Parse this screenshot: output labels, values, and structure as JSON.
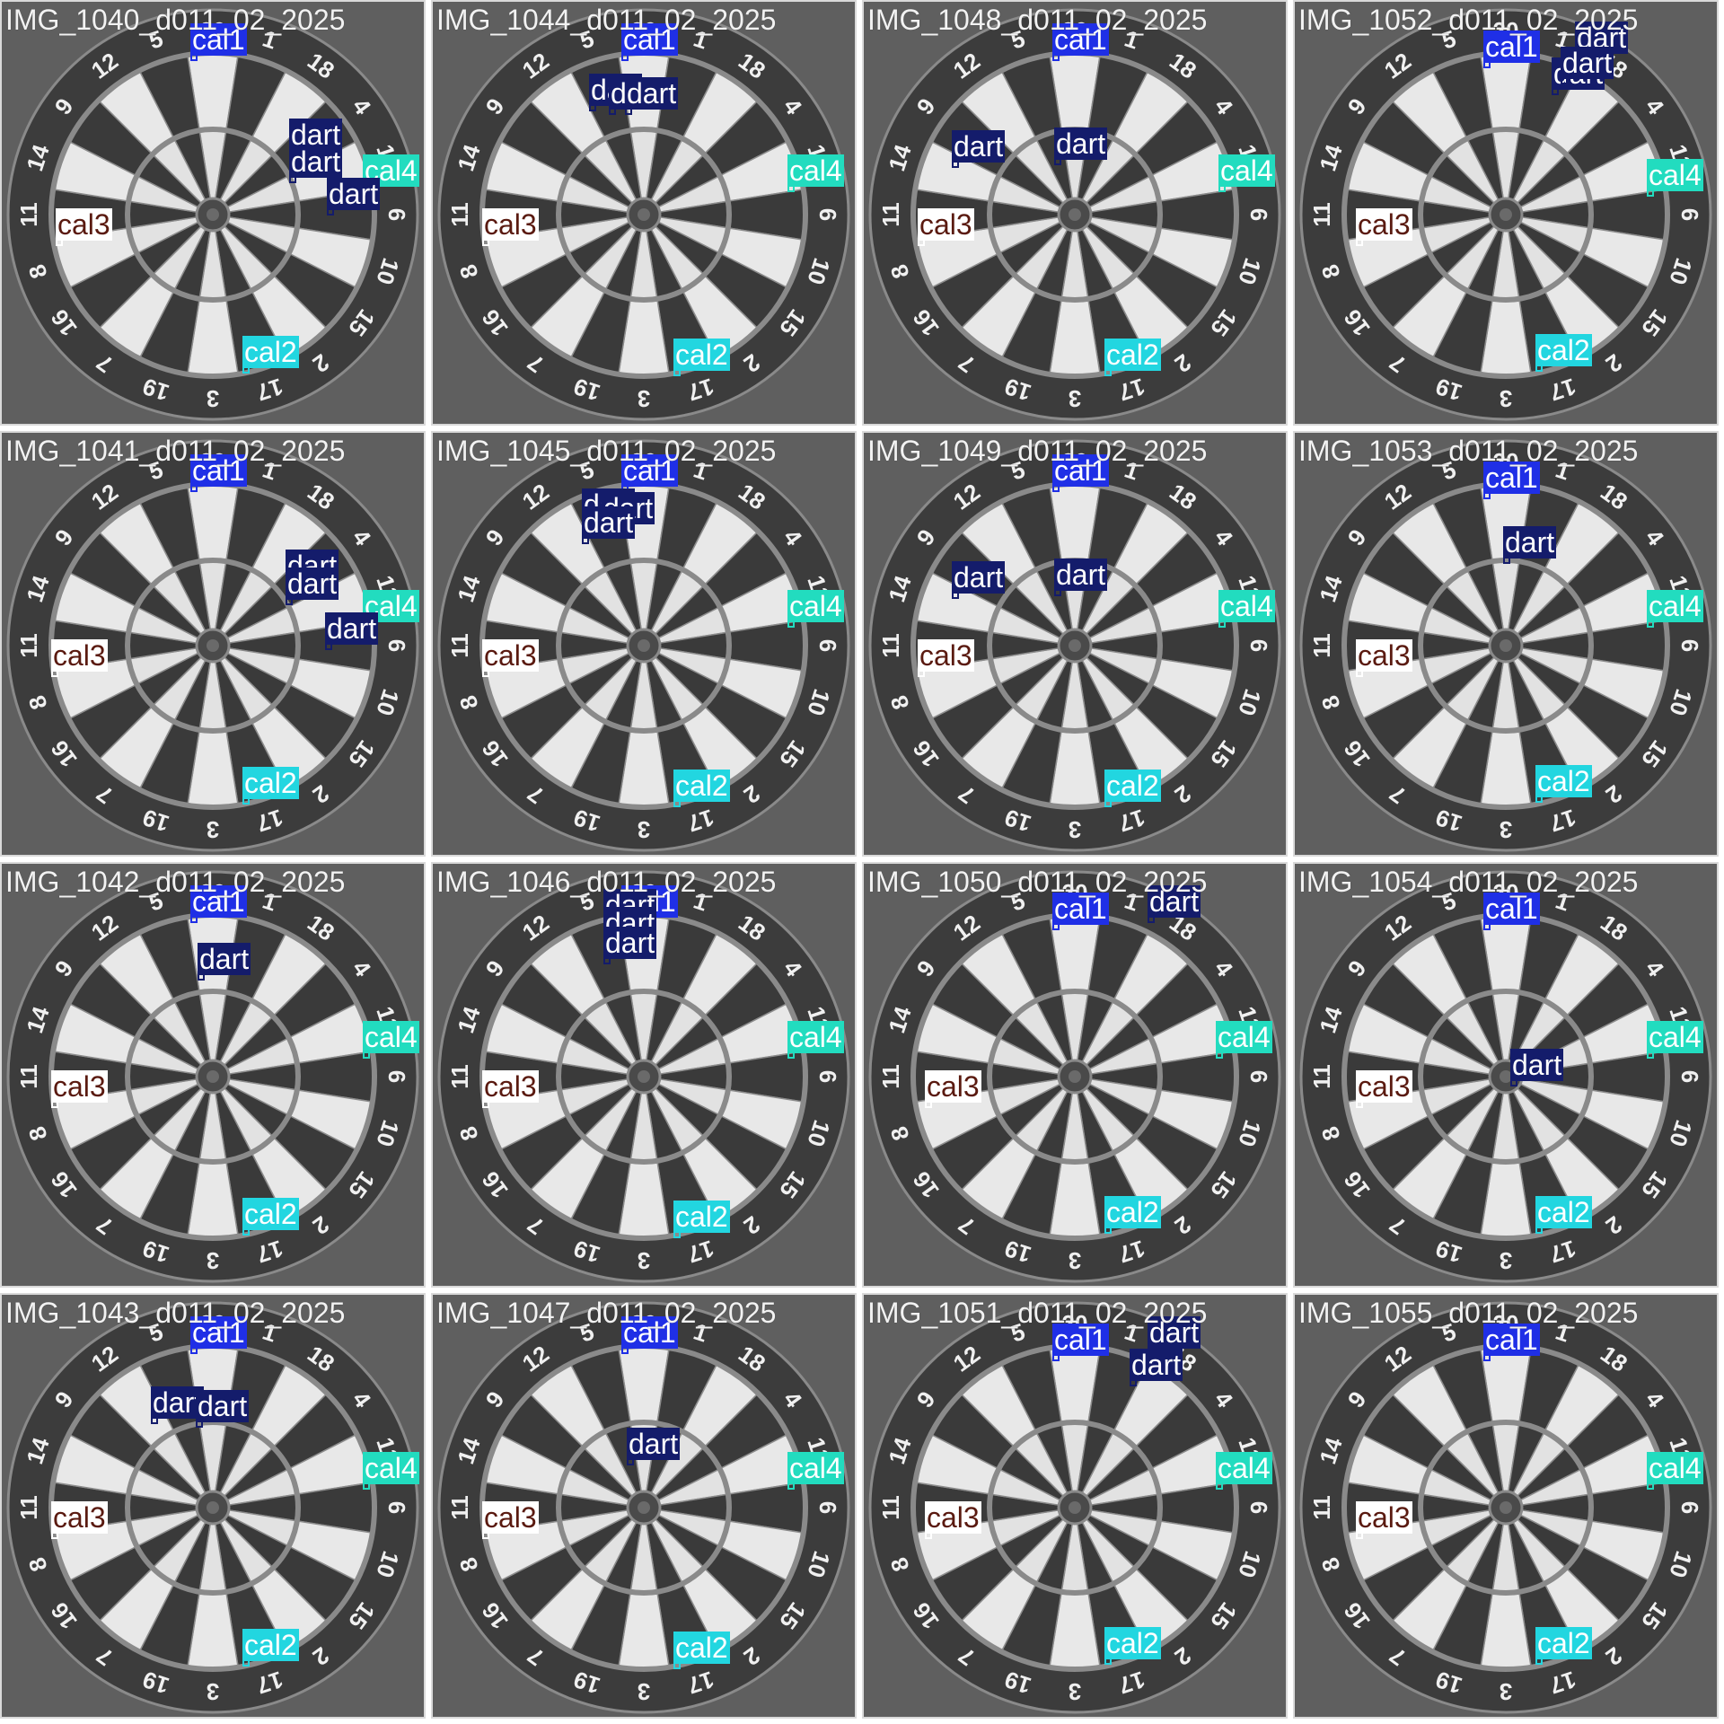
{
  "tile_titles": [
    "IMG_1040_d011_02_2025",
    "IMG_1044_d011_02_2025",
    "IMG_1048_d011_02_2025",
    "IMG_1052_d011_02_2025",
    "IMG_1041_d011_02_2025",
    "IMG_1045_d011_02_2025",
    "IMG_1049_d011_02_2025",
    "IMG_1053_d011_02_2025",
    "IMG_1042_d011_02_2025",
    "IMG_1046_d011_02_2025",
    "IMG_1050_d011_02_2025",
    "IMG_1054_d011_02_2025",
    "IMG_1043_d011_02_2025",
    "IMG_1047_d011_02_2025",
    "IMG_1051_d011_02_2025",
    "IMG_1055_d011_02_2025"
  ],
  "class_labels": {
    "cal1": "cal1",
    "cal2": "cal2",
    "cal3": "cal3",
    "cal4": "cal4",
    "dart": "dart"
  },
  "board_numbers": [
    "20",
    "1",
    "18",
    "4",
    "13",
    "6",
    "10",
    "15",
    "2",
    "17",
    "3",
    "19",
    "7",
    "16",
    "8",
    "11",
    "14",
    "9",
    "12",
    "5"
  ],
  "colors": {
    "cal1": "#1f2fe6",
    "cal2": "#22d6e0",
    "cal3": "#ffffff",
    "cal4": "#22dcbf",
    "dart": "#141c6b",
    "tile_border": "#d9d9d9",
    "board_white": "#e6e6e6",
    "board_dark": "#3a3a3a",
    "background": "#6b6b6b"
  },
  "detections_per_tile": [
    [
      "cal1",
      "cal2",
      "cal3",
      "cal4",
      "dart",
      "dart",
      "dart"
    ],
    [
      "cal1",
      "cal2",
      "cal3",
      "cal4",
      "dart",
      "dart",
      "dart"
    ],
    [
      "cal1",
      "cal2",
      "cal3",
      "cal4",
      "dart",
      "dart"
    ],
    [
      "cal1",
      "cal2",
      "cal3",
      "cal4",
      "dart",
      "dart",
      "dart"
    ],
    [
      "cal1",
      "cal2",
      "cal3",
      "cal4",
      "dart",
      "dart",
      "dart"
    ],
    [
      "cal1",
      "cal2",
      "cal3",
      "cal4",
      "dart",
      "dart",
      "dart"
    ],
    [
      "cal1",
      "cal2",
      "cal3",
      "cal4",
      "dart",
      "dart"
    ],
    [
      "cal1",
      "cal2",
      "cal3",
      "cal4",
      "dart"
    ],
    [
      "cal1",
      "cal2",
      "cal3",
      "cal4",
      "dart"
    ],
    [
      "cal1",
      "cal2",
      "cal3",
      "cal4",
      "dart",
      "dart",
      "dart"
    ],
    [
      "cal1",
      "cal2",
      "cal3",
      "cal4",
      "dart"
    ],
    [
      "cal1",
      "cal2",
      "cal3",
      "cal4",
      "dart"
    ],
    [
      "cal1",
      "cal2",
      "cal3",
      "cal4",
      "dart",
      "dart"
    ],
    [
      "cal1",
      "cal2",
      "cal3",
      "cal4",
      "dart"
    ],
    [
      "cal1",
      "cal2",
      "cal3",
      "cal4",
      "dart",
      "dart"
    ],
    [
      "cal1",
      "cal2",
      "cal3",
      "cal4"
    ]
  ]
}
